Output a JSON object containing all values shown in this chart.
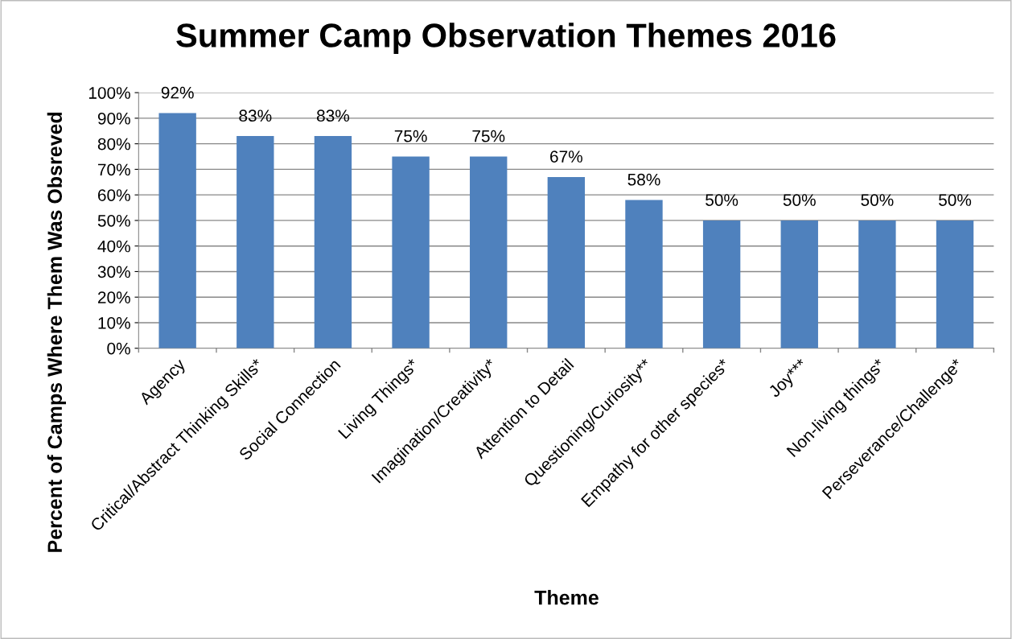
{
  "chart_data": {
    "type": "bar",
    "title": "Summer Camp Observation Themes 2016",
    "xlabel": "Theme",
    "ylabel": "Percent of Camps Where Them Was Obsreved",
    "categories": [
      "Agency",
      "Critical/Abstract Thinking Skills*",
      "Social Connection",
      "Living Things*",
      "Imagination/Creativity*",
      "Attention to Detail",
      "Questioning/Curiosity**",
      "Empathy for other species*",
      "Joy***",
      "Non-living things*",
      "Perseverance/Challenge*"
    ],
    "values": [
      92,
      83,
      83,
      75,
      75,
      67,
      58,
      50,
      50,
      50,
      50
    ],
    "value_labels": [
      "92%",
      "83%",
      "83%",
      "75%",
      "75%",
      "67%",
      "58%",
      "50%",
      "50%",
      "50%",
      "50%"
    ],
    "color": "#4f81bd",
    "ylim": [
      0,
      100
    ],
    "yticks": [
      {
        "value": 0,
        "label": "0%"
      },
      {
        "value": 10,
        "label": "10%"
      },
      {
        "value": 20,
        "label": "20%"
      },
      {
        "value": 30,
        "label": "30%"
      },
      {
        "value": 40,
        "label": "40%"
      },
      {
        "value": 50,
        "label": "50%"
      },
      {
        "value": 60,
        "label": "60%"
      },
      {
        "value": 70,
        "label": "70%"
      },
      {
        "value": 80,
        "label": "80%"
      },
      {
        "value": 90,
        "label": "90%"
      },
      {
        "value": 100,
        "label": "100%"
      }
    ],
    "grid": "y"
  }
}
